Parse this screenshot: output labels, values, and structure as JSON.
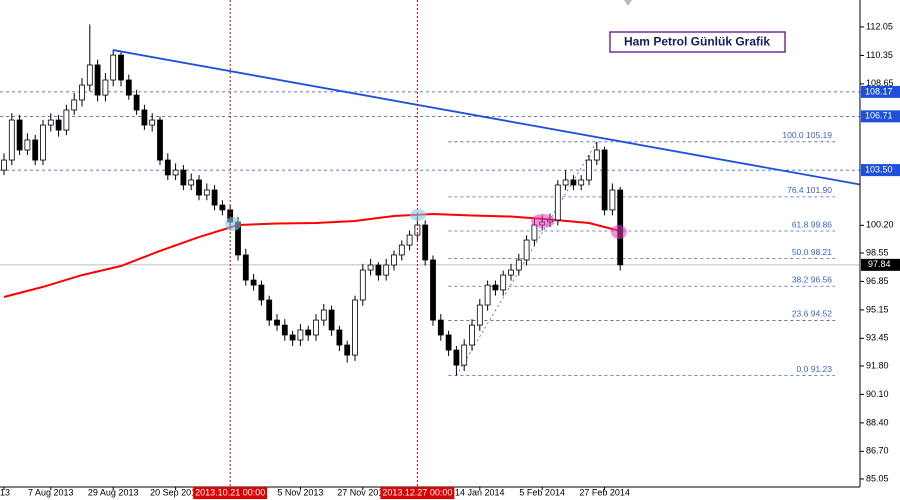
{
  "chart_data": {
    "type": "candlestick",
    "title": "Ham Petrol Günlük Grafik",
    "categories": [
      "13",
      null,
      null,
      null,
      null,
      null,
      "7 Aug 2013",
      null,
      null,
      null,
      null,
      null,
      null,
      null,
      "29 Aug 2013",
      null,
      null,
      null,
      null,
      null,
      null,
      null,
      "20 Sep 2013",
      null,
      null,
      null,
      null,
      null,
      null,
      null,
      null,
      null,
      null,
      null,
      null,
      null,
      null,
      null,
      "5 Nov 2013",
      null,
      null,
      null,
      null,
      null,
      null,
      null,
      "27 Nov 2013",
      null,
      null,
      null,
      null,
      null,
      null,
      null,
      null,
      null,
      null,
      null,
      null,
      null,
      null,
      "14 Jan 2014",
      null,
      null,
      null,
      null,
      null,
      null,
      null,
      "5 Feb 2014",
      null,
      null,
      null,
      null,
      null,
      null,
      null,
      "27 Feb 2014",
      null,
      null
    ],
    "open": [
      103.5,
      104.1,
      106.49,
      104.7,
      105.3,
      104.1,
      106.19,
      106.49,
      105.89,
      107.09,
      107.69,
      108.58,
      109.78,
      107.98,
      108.88,
      110.37,
      108.88,
      107.98,
      107.09,
      106.19,
      106.49,
      104.1,
      103.21,
      103.5,
      102.61,
      102.91,
      102.01,
      102.31,
      101.41,
      101.12,
      100.4,
      98.43,
      96.93,
      96.63,
      95.74,
      94.54,
      94.24,
      93.65,
      93.35,
      93.95,
      93.65,
      94.54,
      95.14,
      93.95,
      93.05,
      92.45,
      95.74,
      97.53,
      97.83,
      97.23,
      97.83,
      98.43,
      99.02,
      99.62,
      100.22,
      98.13,
      94.54,
      93.65,
      92.75,
      91.85,
      93.05,
      94.24,
      95.44,
      96.63,
      96.34,
      97.23,
      97.53,
      98.13,
      99.32,
      100.22,
      100.4,
      100.52,
      102.61,
      102.91,
      102.61,
      102.91,
      104.1,
      104.7,
      101.12,
      102.31
    ],
    "high": [
      104.5,
      106.9,
      106.8,
      105.7,
      105.6,
      106.5,
      106.9,
      106.8,
      107.4,
      108.1,
      109.0,
      112.2,
      110.1,
      109.3,
      110.7,
      110.6,
      109.2,
      108.3,
      107.4,
      106.9,
      106.7,
      104.5,
      103.9,
      103.8,
      103.3,
      103.2,
      102.7,
      102.6,
      101.7,
      101.4,
      100.7,
      98.8,
      97.3,
      96.9,
      96.0,
      94.9,
      94.6,
      93.9,
      94.3,
      94.2,
      94.9,
      95.5,
      95.4,
      94.2,
      93.3,
      96.0,
      97.9,
      98.2,
      98.0,
      98.2,
      98.7,
      99.3,
      99.9,
      100.8,
      100.5,
      98.4,
      94.9,
      93.9,
      93.0,
      93.4,
      94.6,
      95.8,
      96.9,
      96.9,
      97.5,
      97.9,
      98.5,
      99.6,
      100.6,
      100.8,
      100.9,
      102.9,
      103.5,
      103.2,
      103.2,
      104.4,
      105.19,
      104.9,
      102.7,
      102.5
    ],
    "low": [
      103.2,
      103.8,
      104.4,
      104.4,
      103.8,
      103.8,
      105.8,
      105.5,
      105.6,
      106.8,
      107.3,
      108.2,
      107.6,
      107.6,
      108.5,
      108.5,
      107.7,
      106.8,
      105.9,
      105.8,
      103.8,
      102.9,
      102.9,
      102.3,
      102.3,
      101.7,
      101.7,
      101.1,
      100.8,
      99.9,
      98.1,
      96.6,
      96.3,
      95.4,
      94.2,
      93.9,
      93.3,
      93.0,
      93.0,
      93.3,
      93.3,
      94.2,
      93.6,
      92.7,
      92.0,
      92.1,
      95.4,
      97.2,
      96.9,
      96.9,
      97.5,
      98.1,
      98.7,
      99.3,
      97.8,
      94.2,
      93.3,
      92.4,
      91.23,
      91.5,
      92.7,
      93.9,
      95.1,
      96.0,
      96.0,
      96.9,
      97.2,
      97.8,
      99.0,
      99.9,
      100.1,
      100.2,
      102.3,
      102.3,
      102.3,
      102.6,
      103.8,
      100.8,
      100.8,
      97.5
    ],
    "close": [
      104.1,
      106.49,
      104.7,
      105.3,
      104.1,
      106.19,
      106.49,
      105.89,
      107.09,
      107.69,
      108.58,
      109.78,
      107.98,
      108.88,
      110.37,
      108.88,
      107.98,
      107.09,
      106.19,
      106.49,
      104.1,
      103.21,
      103.5,
      102.61,
      102.91,
      102.01,
      102.31,
      101.41,
      101.12,
      100.4,
      98.43,
      96.93,
      96.63,
      95.74,
      94.54,
      94.24,
      93.65,
      93.35,
      93.95,
      93.65,
      94.54,
      95.14,
      93.95,
      93.05,
      92.45,
      95.74,
      97.53,
      97.83,
      97.23,
      97.83,
      98.43,
      99.02,
      99.62,
      100.22,
      98.13,
      94.54,
      93.65,
      92.75,
      91.85,
      93.05,
      94.24,
      95.44,
      96.63,
      96.34,
      97.23,
      97.53,
      98.13,
      99.32,
      100.22,
      100.4,
      100.52,
      102.61,
      102.91,
      102.61,
      102.91,
      104.1,
      104.7,
      101.12,
      102.31,
      97.84
    ],
    "ylim": [
      84.57,
      113.66
    ],
    "yticks": [
      112.05,
      110.35,
      108.65,
      {
        "value": 100.2,
        "label": "100.20"
      },
      98.55,
      96.85,
      95.15,
      93.45,
      {
        "value": 91.8,
        "label": "91.80"
      },
      {
        "value": 90.1,
        "label": "90.10"
      },
      {
        "value": 88.4,
        "label": "88.40"
      },
      {
        "value": 86.7,
        "label": "86.70"
      },
      85.05
    ],
    "moving_average": {
      "color": "#ff0000",
      "x": [
        0,
        5,
        10,
        15,
        20,
        25,
        30,
        35,
        40,
        45,
        50,
        55,
        60,
        65,
        70,
        75,
        79
      ],
      "values": [
        95.92,
        96.52,
        97.23,
        97.77,
        98.67,
        99.5,
        100.22,
        100.31,
        100.34,
        100.46,
        100.76,
        100.88,
        100.79,
        100.73,
        100.55,
        100.34,
        99.86
      ]
    },
    "trendline": {
      "color": "#1e50dc",
      "x": [
        14,
        78
      ],
      "values": [
        110.67,
        105.3
      ],
      "ray": true
    },
    "levels": [
      108.17,
      106.71,
      {
        "value": 103.5,
        "label": "103.50"
      }
    ],
    "level_color": "#1e50dc",
    "current_price": 97.84,
    "fibonacci": {
      "color": "#3c64c8",
      "x": [
        58,
        76
      ],
      "levels": [
        {
          "value": 105.19,
          "label": "100.0 105.19"
        },
        {
          "value": 101.9,
          "label": "76.4 101.90"
        },
        {
          "value": 99.86,
          "label": "61.8 99.86"
        },
        {
          "value": 98.21,
          "label": "50.0 98.21"
        },
        {
          "value": 96.56,
          "label": "38.2 96.56"
        },
        {
          "value": 94.52,
          "label": "23.6 94.52"
        },
        {
          "value": 91.23,
          "label": "0.0 91.23"
        }
      ]
    },
    "vertical_lines": [
      {
        "category": 29,
        "label": "2013.10.21 00:00"
      },
      {
        "category": 53,
        "label": "2013.12.27 00:00"
      }
    ],
    "vertical_line_color": "#e00000"
  }
}
